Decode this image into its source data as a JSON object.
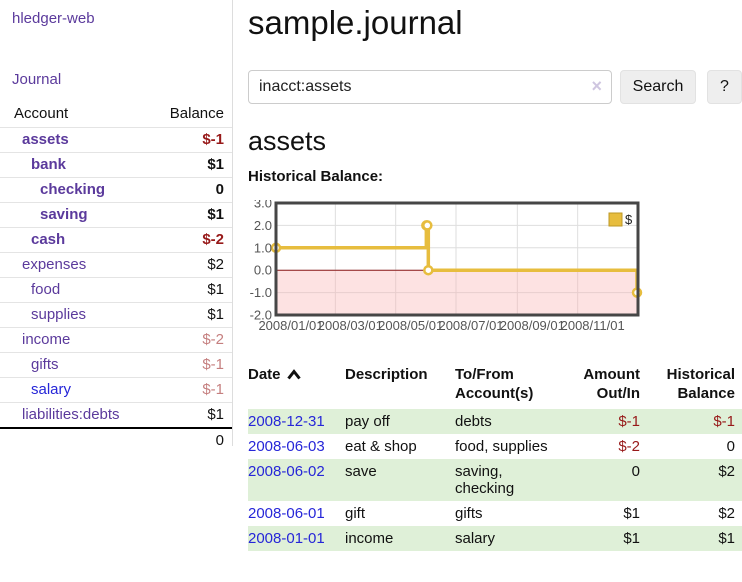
{
  "app": {
    "title": "hledger-web"
  },
  "nav": {
    "journal_label": "Journal"
  },
  "sidebar": {
    "header": {
      "account": "Account",
      "balance": "Balance"
    },
    "accounts": [
      {
        "name": "assets",
        "name_class": "d1 bold",
        "balance": "$-1",
        "bal_class": "bold neg"
      },
      {
        "name": "bank",
        "name_class": "d2 bold",
        "balance": "$1",
        "bal_class": "bold"
      },
      {
        "name": "checking",
        "name_class": "d3 bold",
        "balance": "0",
        "bal_class": "bold"
      },
      {
        "name": "saving",
        "name_class": "d3 bold",
        "balance": "$1",
        "bal_class": "bold"
      },
      {
        "name": "cash",
        "name_class": "d2 bold",
        "balance": "$-2",
        "bal_class": "bold neg"
      },
      {
        "name": "expenses",
        "name_class": "d1",
        "balance": "$2",
        "bal_class": ""
      },
      {
        "name": "food",
        "name_class": "d2",
        "balance": "$1",
        "bal_class": ""
      },
      {
        "name": "supplies",
        "name_class": "d2",
        "balance": "$1",
        "bal_class": ""
      },
      {
        "name": "income",
        "name_class": "d1",
        "balance": "$-2",
        "bal_class": "fneg"
      },
      {
        "name": "gifts",
        "name_class": "d2",
        "balance": "$-1",
        "bal_class": "fneg"
      },
      {
        "name": "salary",
        "name_class": "d2 blue",
        "balance": "$-1",
        "bal_class": "fneg"
      },
      {
        "name": "liabilities:debts",
        "name_class": "d1",
        "balance": "$1",
        "bal_class": ""
      }
    ],
    "total": "0"
  },
  "main": {
    "title": "sample.journal",
    "search": {
      "value": "inacct:assets",
      "clear_icon": "×",
      "button_label": "Search",
      "help_label": "?"
    },
    "account_heading": "assets",
    "chart_label": "Historical Balance:"
  },
  "chart_data": {
    "type": "line",
    "title": "Historical Balance",
    "step": true,
    "legend": "$",
    "line_color": "#e7bd3e",
    "marker_fill": "#ffffff",
    "negative_fill": "rgba(250,180,180,0.38)",
    "zero_line_color": "#8b1a1a",
    "grid_color": "#dedede",
    "border_color": "#464646",
    "tick_text_color": "#555555",
    "ylim": [
      -2,
      3
    ],
    "yticks": [
      {
        "value": 3,
        "label": "3.0"
      },
      {
        "value": 2,
        "label": "2.0"
      },
      {
        "value": 1,
        "label": "1.0"
      },
      {
        "value": 0,
        "label": "0.0"
      },
      {
        "value": -1,
        "label": "-1.0"
      },
      {
        "value": -2,
        "label": "-2.0"
      }
    ],
    "xlim_days": [
      0,
      366
    ],
    "xticks": [
      {
        "day": 0,
        "label": "2008/01/01"
      },
      {
        "day": 60,
        "label": "2008/03/01"
      },
      {
        "day": 121,
        "label": "2008/05/01"
      },
      {
        "day": 182,
        "label": "2008/07/01"
      },
      {
        "day": 244,
        "label": "2008/09/01"
      },
      {
        "day": 305,
        "label": "2008/11/01"
      }
    ],
    "series": [
      {
        "name": "$",
        "points": [
          {
            "date": "2008-01-01",
            "day": 0,
            "value": 1
          },
          {
            "date": "2008-06-01",
            "day": 152,
            "value": 2
          },
          {
            "date": "2008-06-02",
            "day": 153,
            "value": 2
          },
          {
            "date": "2008-06-03",
            "day": 154,
            "value": 0
          },
          {
            "date": "2008-12-31",
            "day": 365,
            "value": -1
          }
        ]
      }
    ]
  },
  "register": {
    "headers": {
      "date": "Date",
      "description": "Description",
      "accounts": "To/From Account(s)",
      "amount": "Amount Out/In",
      "balance": "Historical Balance"
    },
    "rows": [
      {
        "date": "2008-12-31",
        "description": "pay off",
        "accounts": "debts",
        "amount": "$-1",
        "amount_class": "neg",
        "balance": "$-1",
        "balance_class": "neg"
      },
      {
        "date": "2008-06-03",
        "description": "eat & shop",
        "accounts": "food, supplies",
        "amount": "$-2",
        "amount_class": "neg",
        "balance": "0",
        "balance_class": ""
      },
      {
        "date": "2008-06-02",
        "description": "save",
        "accounts": "saving, checking",
        "amount": "0",
        "amount_class": "",
        "balance": "$2",
        "balance_class": ""
      },
      {
        "date": "2008-06-01",
        "description": "gift",
        "accounts": "gifts",
        "amount": "$1",
        "amount_class": "",
        "balance": "$2",
        "balance_class": ""
      },
      {
        "date": "2008-01-01",
        "description": "income",
        "accounts": "salary",
        "amount": "$1",
        "amount_class": "",
        "balance": "$1",
        "balance_class": ""
      }
    ]
  }
}
